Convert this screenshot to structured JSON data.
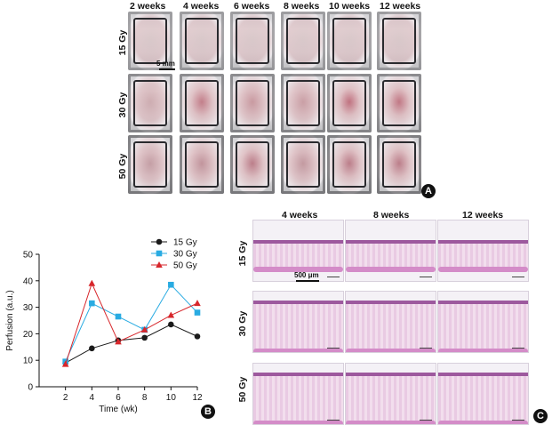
{
  "panel_a": {
    "letter": "A",
    "columns": [
      "2 weeks",
      "4 weeks",
      "6 weeks",
      "8 weeks",
      "10 weeks",
      "12 weeks"
    ],
    "rows": [
      "15 Gy",
      "30 Gy",
      "50 Gy"
    ],
    "scale_bar": "5 mm"
  },
  "panel_b": {
    "letter": "B",
    "chart_data": {
      "type": "line",
      "title": "",
      "xlabel": "Time (wk)",
      "ylabel": "Perfusion (a.u.)",
      "x": [
        2,
        4,
        6,
        8,
        10,
        12
      ],
      "xlim": [
        0,
        12
      ],
      "ylim": [
        0,
        50
      ],
      "xticks": [
        2,
        4,
        6,
        8,
        10,
        12
      ],
      "yticks": [
        0,
        10,
        20,
        30,
        40,
        50
      ],
      "legend_position": "top-right",
      "series": [
        {
          "name": "15 Gy",
          "marker": "circle",
          "color": "#1a1a1a",
          "values": [
            9,
            14.5,
            17.5,
            18.5,
            23.5,
            19
          ]
        },
        {
          "name": "30 Gy",
          "marker": "square",
          "color": "#29abe2",
          "values": [
            9.5,
            31.5,
            26.5,
            21.5,
            38.5,
            28
          ]
        },
        {
          "name": "50 Gy",
          "marker": "triangle",
          "color": "#d7262b",
          "values": [
            8.5,
            39,
            17,
            21.5,
            27,
            31.5
          ]
        }
      ]
    }
  },
  "panel_c": {
    "letter": "C",
    "columns": [
      "4 weeks",
      "8 weeks",
      "12 weeks"
    ],
    "rows": [
      "15 Gy",
      "30 Gy",
      "50 Gy"
    ],
    "scale_bar": "500 μm"
  }
}
